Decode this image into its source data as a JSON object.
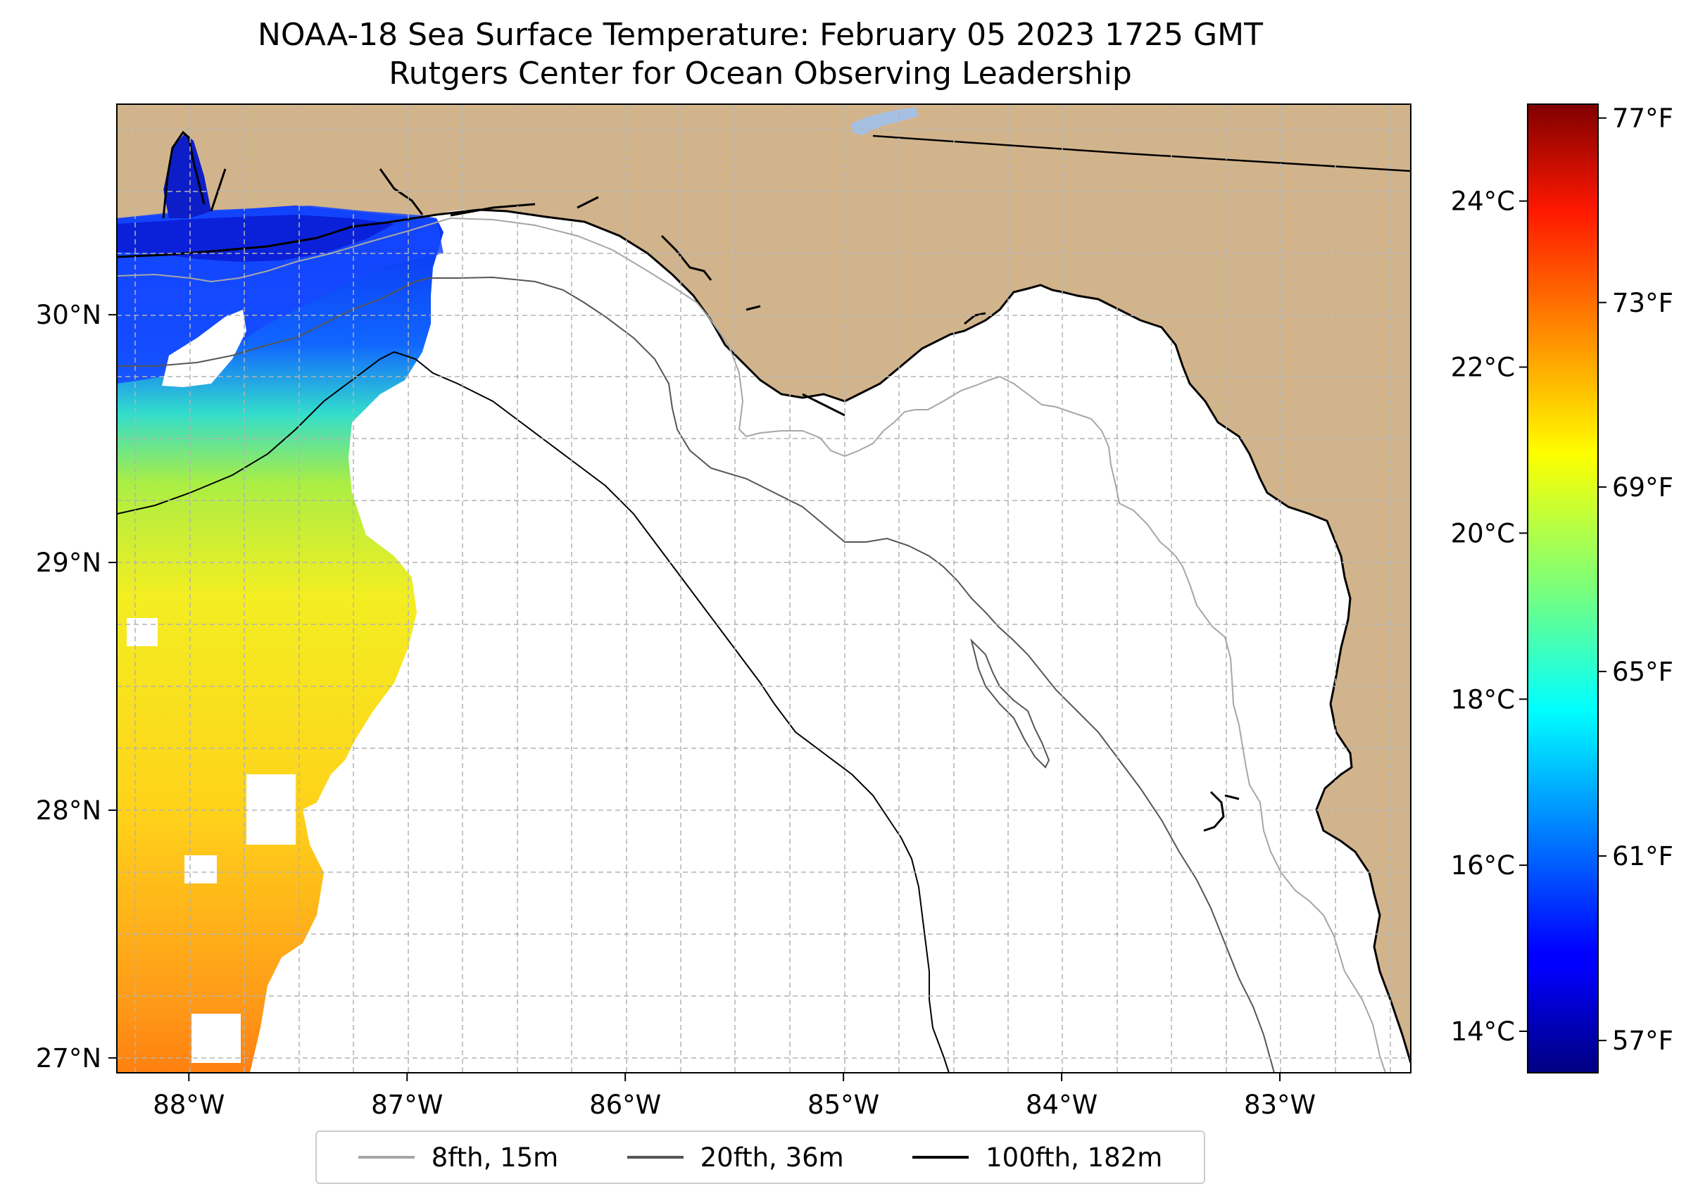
{
  "title": {
    "line1": "NOAA-18 Sea Surface Temperature: February 05 2023 1725 GMT",
    "line2": "Rutgers Center for Ocean Observing Leadership"
  },
  "map": {
    "lon_range": [
      -88.33,
      -82.4
    ],
    "lat_range": [
      26.94,
      30.85
    ],
    "lon_ticks": [
      {
        "value": -88,
        "label": "88°W"
      },
      {
        "value": -87,
        "label": "87°W"
      },
      {
        "value": -86,
        "label": "86°W"
      },
      {
        "value": -85,
        "label": "85°W"
      },
      {
        "value": -84,
        "label": "84°W"
      },
      {
        "value": -83,
        "label": "83°W"
      }
    ],
    "lat_ticks": [
      {
        "value": 30,
        "label": "30°N"
      },
      {
        "value": 29,
        "label": "29°N"
      },
      {
        "value": 28,
        "label": "28°N"
      },
      {
        "value": 27,
        "label": "27°N"
      }
    ],
    "colors": {
      "land": "#d2b48c",
      "ocean": "#ffffff",
      "coast": "#000000",
      "lake": "#a6c0e3",
      "grid": "#b3b3b3"
    }
  },
  "colorbar": {
    "celsius_ticks": [
      {
        "value": 24,
        "label": "24°C"
      },
      {
        "value": 22,
        "label": "22°C"
      },
      {
        "value": 20,
        "label": "20°C"
      },
      {
        "value": 18,
        "label": "18°C"
      },
      {
        "value": 16,
        "label": "16°C"
      },
      {
        "value": 14,
        "label": "14°C"
      }
    ],
    "fahrenheit_ticks": [
      {
        "value": 77,
        "label": "77°F"
      },
      {
        "value": 73,
        "label": "73°F"
      },
      {
        "value": 69,
        "label": "69°F"
      },
      {
        "value": 65,
        "label": "65°F"
      },
      {
        "value": 61,
        "label": "61°F"
      },
      {
        "value": 57,
        "label": "57°F"
      }
    ],
    "range_f": [
      56.3,
      77.3
    ],
    "colormap": "jet"
  },
  "legend": {
    "items": [
      {
        "label": "8fth, 15m",
        "color": "#a6a6a6"
      },
      {
        "label": "20fth, 36m",
        "color": "#555555"
      },
      {
        "label": "100fth, 182m",
        "color": "#000000"
      }
    ]
  }
}
